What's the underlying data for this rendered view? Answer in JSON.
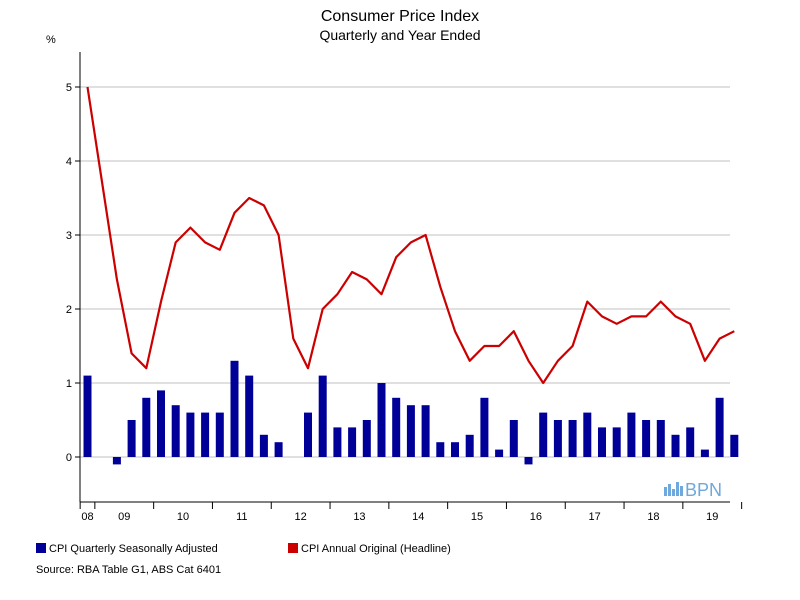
{
  "chart_data": {
    "type": "bar+line",
    "title": "Consumer Price Index",
    "subtitle": "Quarterly and Year Ended",
    "ylabel": "%",
    "ylim": [
      -0.6,
      5.5
    ],
    "yticks": [
      0,
      1,
      2,
      3,
      4,
      5
    ],
    "grid": true,
    "year_labels": [
      "08",
      "09",
      "10",
      "11",
      "12",
      "13",
      "14",
      "15",
      "16",
      "17",
      "18",
      "19"
    ],
    "x_start": "2008 Q4",
    "series": [
      {
        "name": "CPI Quarterly Seasonally Adjusted",
        "type": "bar",
        "color": "#000099",
        "values": [
          1.1,
          0.0,
          -0.1,
          0.5,
          0.8,
          0.9,
          0.7,
          0.6,
          0.6,
          0.6,
          1.3,
          1.1,
          0.3,
          0.2,
          0.0,
          0.6,
          1.1,
          0.4,
          0.4,
          0.5,
          1.0,
          0.8,
          0.7,
          0.7,
          0.2,
          0.2,
          0.3,
          0.8,
          0.1,
          0.5,
          -0.1,
          0.6,
          0.5,
          0.5,
          0.6,
          0.4,
          0.4,
          0.6,
          0.5,
          0.5,
          0.3,
          0.4,
          0.1,
          0.8,
          0.3
        ]
      },
      {
        "name": "CPI Annual Original (Headline)",
        "type": "line",
        "color": "#cc0000",
        "values": [
          5.0,
          3.7,
          2.4,
          1.4,
          1.2,
          2.1,
          2.9,
          3.1,
          2.9,
          2.8,
          3.3,
          3.5,
          3.4,
          3.0,
          1.6,
          1.2,
          2.0,
          2.2,
          2.5,
          2.4,
          2.2,
          2.7,
          2.9,
          3.0,
          2.3,
          1.7,
          1.3,
          1.5,
          1.5,
          1.7,
          1.3,
          1.0,
          1.3,
          1.5,
          2.1,
          1.9,
          1.8,
          1.9,
          1.9,
          2.1,
          1.9,
          1.8,
          1.3,
          1.6,
          1.7
        ]
      }
    ]
  },
  "legend": {
    "bar_label": "CPI Quarterly Seasonally Adjusted",
    "line_label": "CPI Annual Original (Headline)"
  },
  "source": "Source: RBA Table G1, ABS Cat 6401",
  "logo_text": "BPN",
  "colors": {
    "bar": "#000099",
    "line": "#cc0000",
    "grid": "#c0c0c0",
    "logo": "#6fa8dc"
  }
}
